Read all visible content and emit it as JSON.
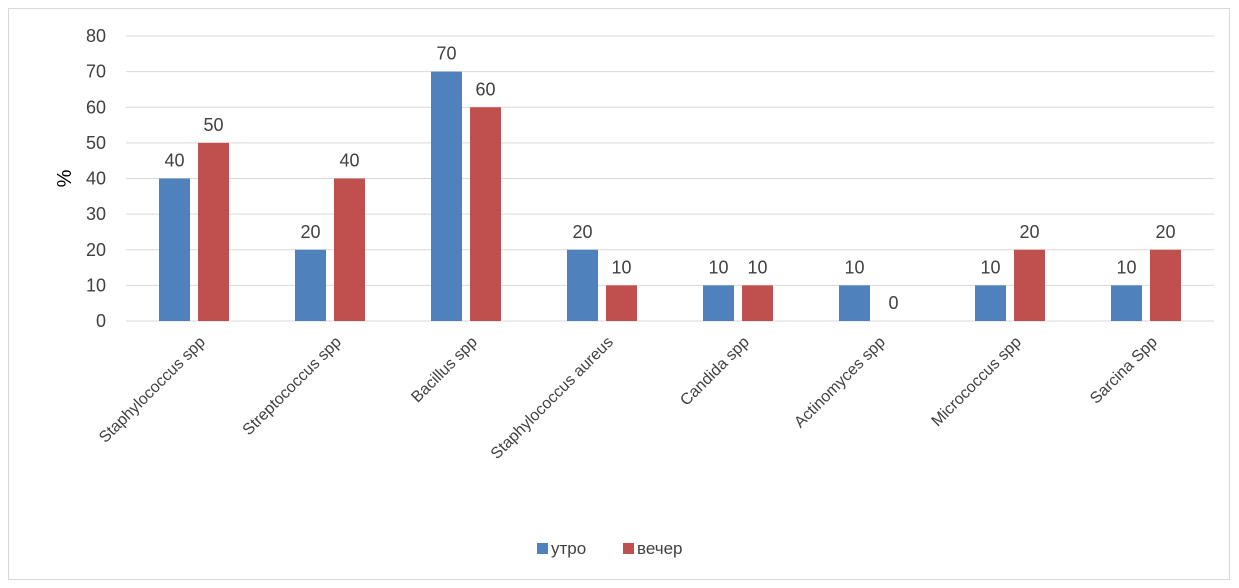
{
  "chart_data": {
    "type": "bar",
    "title": "",
    "xlabel": "",
    "ylabel": "%",
    "ylim": [
      0,
      80
    ],
    "yticks": [
      0,
      10,
      20,
      30,
      40,
      50,
      60,
      70,
      80
    ],
    "grid": true,
    "legend_position": "bottom",
    "categories": [
      "Staphylococcus spp",
      "Streptococcus spp",
      "Bacillus spp",
      "Staphylococcus aureus",
      "Candida spp",
      "Actinomyces spp",
      "Micrococcus spp",
      "Sarcina Spp"
    ],
    "series": [
      {
        "name": "утро",
        "color": "#4f81bd",
        "values": [
          40,
          20,
          70,
          20,
          10,
          10,
          10,
          10
        ]
      },
      {
        "name": "вечер",
        "color": "#c0504d",
        "values": [
          50,
          40,
          60,
          10,
          10,
          0,
          20,
          20
        ]
      }
    ]
  }
}
